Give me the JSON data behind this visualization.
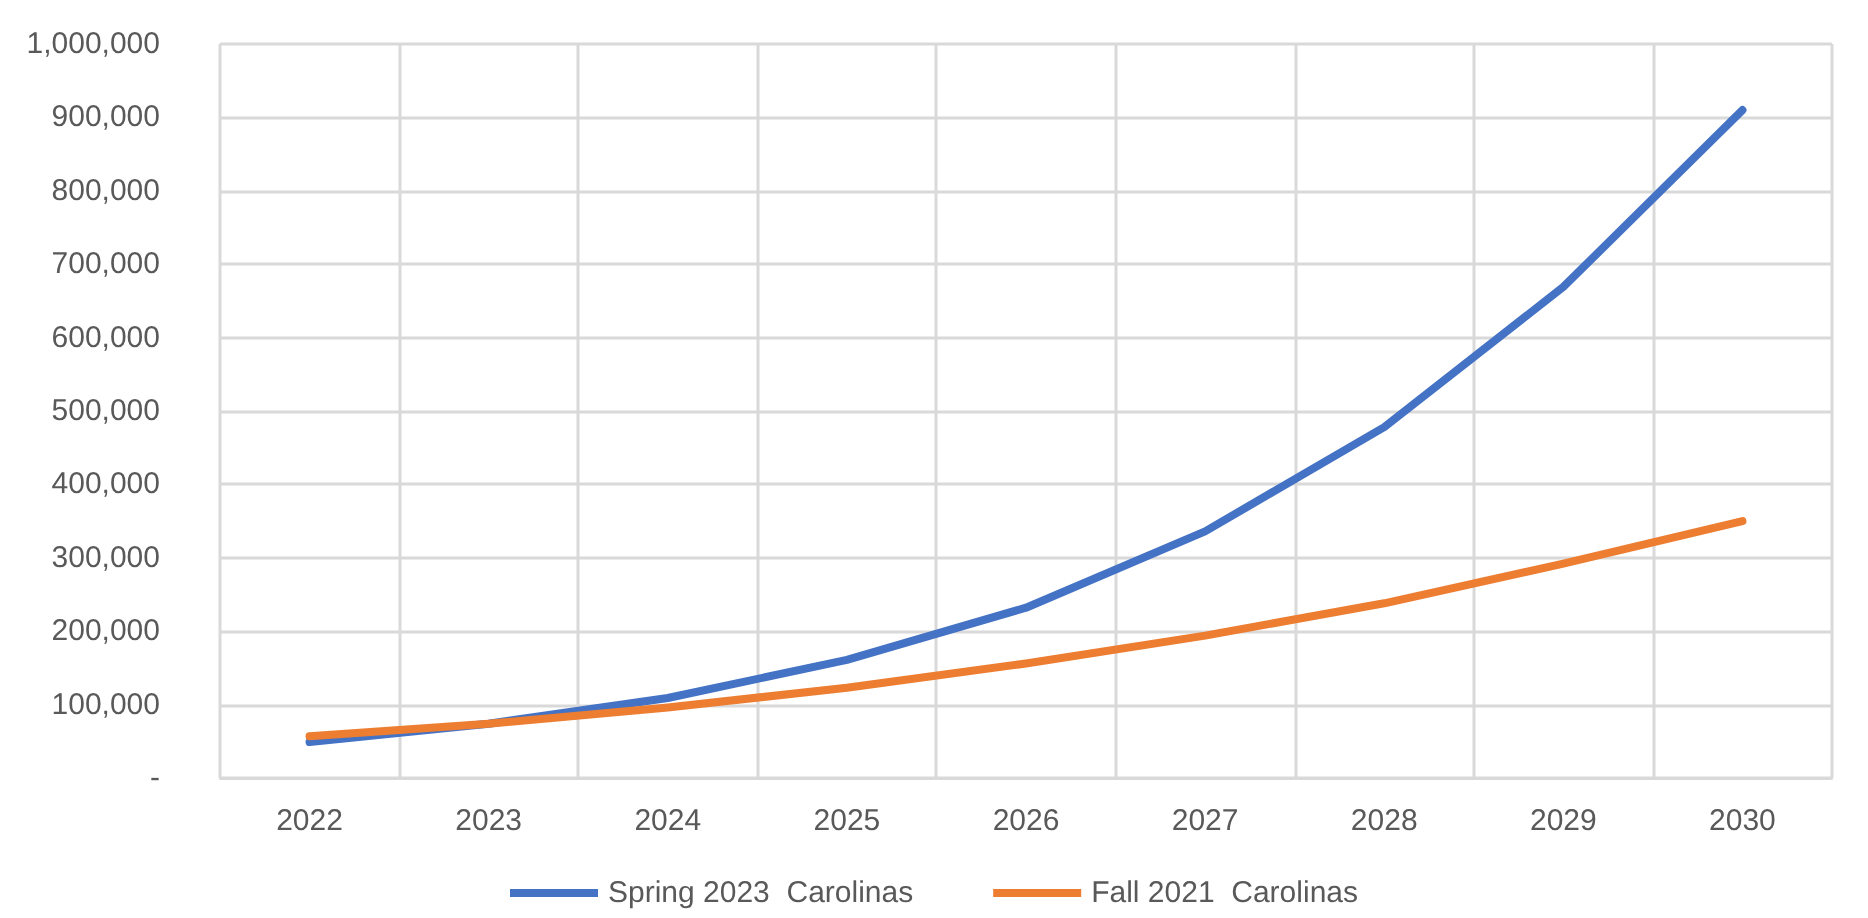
{
  "chart_data": {
    "type": "line",
    "categories": [
      "2022",
      "2023",
      "2024",
      "2025",
      "2026",
      "2027",
      "2028",
      "2029",
      "2030"
    ],
    "series": [
      {
        "name": "Spring 2023  Carolinas",
        "color": "#4472c4",
        "values": [
          49000,
          74000,
          109000,
          161000,
          232000,
          336000,
          478000,
          669000,
          910000
        ]
      },
      {
        "name": "Fall 2021  Carolinas",
        "color": "#ed7d31",
        "values": [
          57000,
          74000,
          96000,
          123000,
          156000,
          194000,
          238000,
          292000,
          350000
        ]
      }
    ],
    "ylim": [
      0,
      1000000
    ],
    "yticks": [
      {
        "value": 0,
        "label": "-"
      },
      {
        "value": 100000,
        "label": "100,000"
      },
      {
        "value": 200000,
        "label": "200,000"
      },
      {
        "value": 300000,
        "label": "300,000"
      },
      {
        "value": 400000,
        "label": "400,000"
      },
      {
        "value": 500000,
        "label": "500,000"
      },
      {
        "value": 600000,
        "label": "600,000"
      },
      {
        "value": 700000,
        "label": "700,000"
      },
      {
        "value": 800000,
        "label": "800,000"
      },
      {
        "value": 900000,
        "label": "900,000"
      },
      {
        "value": 1000000,
        "label": "1,000,000"
      }
    ],
    "grid": true,
    "legend": "bottom",
    "marker": "none",
    "line_style": "solid"
  }
}
